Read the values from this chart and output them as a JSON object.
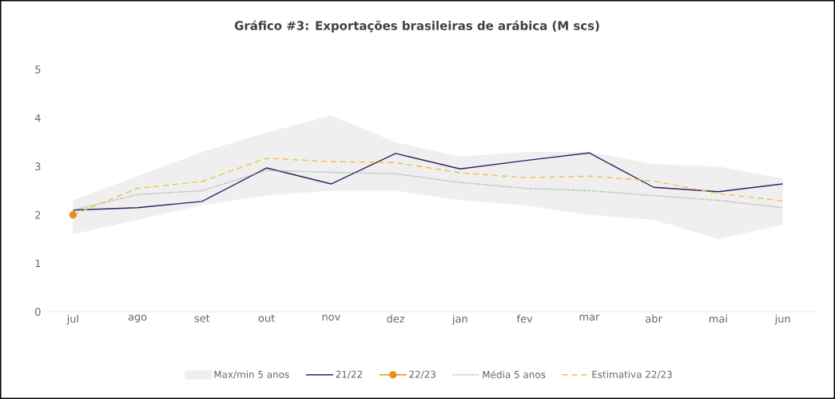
{
  "chart_data": {
    "type": "line",
    "title": "Gráfico #3: Exportações brasileiras de arábica (M scs)",
    "categories": [
      "jul",
      "ago",
      "set",
      "out",
      "nov",
      "dez",
      "jan",
      "fev",
      "mar",
      "abr",
      "mai",
      "jun"
    ],
    "ylim": [
      0,
      5
    ],
    "yticks": [
      0,
      1,
      2,
      3,
      4,
      5
    ],
    "grid": false,
    "legend": "bottom",
    "series": [
      {
        "name": "Max/min 5 anos",
        "type": "area",
        "color": "#efefef",
        "values": [
          null,
          null,
          null,
          null,
          null,
          null,
          null,
          null,
          null,
          null,
          null,
          null
        ],
        "upper": [
          2.3,
          2.8,
          3.3,
          3.7,
          4.05,
          3.5,
          3.2,
          3.3,
          3.3,
          3.05,
          3.0,
          2.75
        ],
        "lower": [
          1.6,
          1.9,
          2.2,
          2.4,
          2.5,
          2.5,
          2.3,
          2.2,
          2.0,
          1.9,
          1.5,
          1.8
        ]
      },
      {
        "name": "21/22",
        "color": "#2e2466",
        "line_style": "solid",
        "values": [
          2.1,
          2.15,
          2.28,
          2.97,
          2.64,
          3.27,
          2.95,
          3.12,
          3.28,
          2.57,
          2.48,
          2.64
        ]
      },
      {
        "name": "22/23",
        "color": "#e8901a",
        "line_style": "solid",
        "marker": "circle",
        "values": [
          2.0,
          null,
          null,
          null,
          null,
          null,
          null,
          null,
          null,
          null,
          null,
          null
        ]
      },
      {
        "name": "Média 5 anos",
        "color": "#999999",
        "line_style": "dotted",
        "values": [
          2.1,
          2.42,
          2.5,
          2.92,
          2.88,
          2.85,
          2.67,
          2.55,
          2.5,
          2.4,
          2.3,
          2.15
        ]
      },
      {
        "name": "Estimativa 22/23",
        "color": "#f0c040",
        "line_style": "dashed",
        "values": [
          2.0,
          2.55,
          2.69,
          3.17,
          3.1,
          3.08,
          2.87,
          2.77,
          2.8,
          2.7,
          2.44,
          2.29
        ]
      }
    ]
  }
}
